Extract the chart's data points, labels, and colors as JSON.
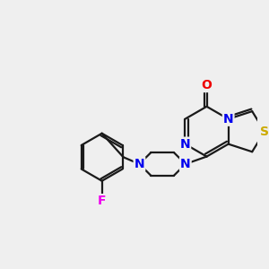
{
  "bg_color": "#efefef",
  "bond_color": "#1a1a1a",
  "bond_width": 1.6,
  "atom_colors": {
    "S": "#ccaa00",
    "N": "#0000ee",
    "O": "#ee0000",
    "F": "#ee00ee",
    "C": "#1a1a1a"
  },
  "figsize": [
    3.0,
    3.0
  ],
  "dpi": 100
}
